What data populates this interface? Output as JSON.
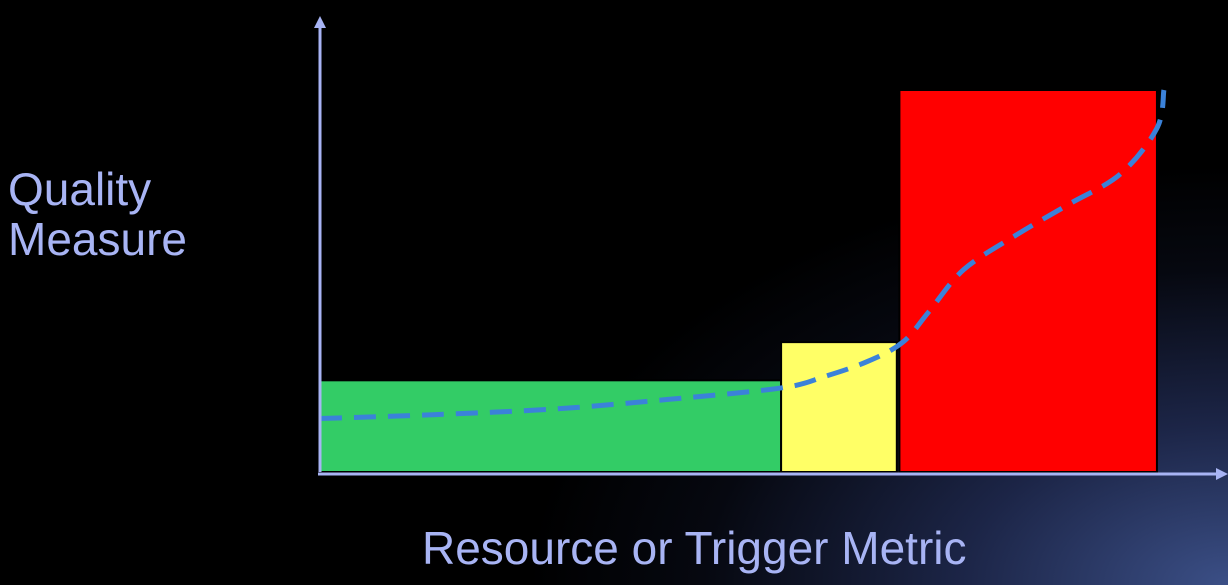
{
  "chart_data": {
    "type": "bar",
    "ylabel_lines": [
      "Quality",
      "Measure"
    ],
    "xlabel": "Resource or Trigger Metric",
    "xlim": [
      0,
      100
    ],
    "ylim": [
      0,
      100
    ],
    "grid": false,
    "bars": [
      {
        "name": "green-zone",
        "x_start": 0,
        "x_end": 53,
        "value": 24,
        "color": "#33cc66"
      },
      {
        "name": "yellow-zone",
        "x_start": 53,
        "x_end": 66.3,
        "value": 34,
        "color": "#ffff66"
      },
      {
        "name": "red-zone",
        "x_start": 66.6,
        "x_end": 96.2,
        "value": 100,
        "color": "#ff0000"
      }
    ],
    "curve": {
      "style": "dashed",
      "color": "#3b82d9",
      "x": [
        0,
        13,
        27,
        40,
        53,
        58,
        63,
        67,
        70,
        74,
        80,
        86,
        92,
        96.2,
        97
      ],
      "y": [
        14,
        15,
        16.5,
        19,
        22,
        25,
        29,
        34,
        42,
        53,
        62,
        70,
        78,
        90,
        100
      ]
    },
    "axis_color": "#a8b4f4"
  }
}
